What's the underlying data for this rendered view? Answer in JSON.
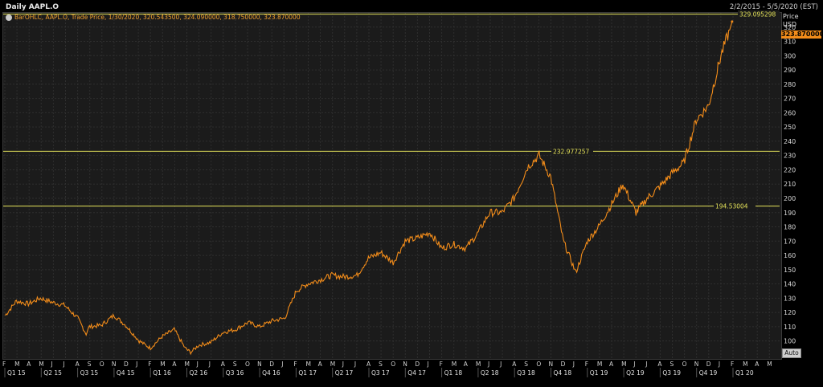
{
  "header": {
    "title": "Daily AAPL.O",
    "date_range": "2/2/2015 - 5/5/2020 (EST)"
  },
  "legend": {
    "text": "BarOHLC, AAPL.O, Trade Price, 1/30/2020, 320.543500, 324.090000, 318.750000, 323.870000"
  },
  "axis": {
    "label": "Price",
    "unit": "USD",
    "last_price": "323.870000",
    "auto_button": "Auto"
  },
  "colors": {
    "background": "#000000",
    "plot": "#1b1b1b",
    "grid": "#2f2f2f",
    "price_line": "#f28c1a",
    "levels": "#e5e35a"
  },
  "chart_data": {
    "type": "line",
    "title": "Daily AAPL.O",
    "ylabel": "Price USD",
    "ylim": [
      88,
      330
    ],
    "y_ticks": [
      100,
      110,
      120,
      130,
      140,
      150,
      160,
      170,
      180,
      190,
      200,
      210,
      220,
      230,
      240,
      250,
      260,
      270,
      280,
      290,
      300,
      310,
      320
    ],
    "grid": true,
    "month_labels": [
      "F",
      "M",
      "A",
      "M",
      "J",
      "J",
      "A",
      "S",
      "O",
      "N",
      "D",
      "J",
      "F",
      "M",
      "A",
      "M",
      "J",
      "J",
      "A",
      "S",
      "O",
      "N",
      "D",
      "J",
      "F",
      "M",
      "A",
      "M",
      "J",
      "J",
      "A",
      "S",
      "O",
      "N",
      "D",
      "J",
      "F",
      "M",
      "A",
      "M",
      "J",
      "J",
      "A",
      "S",
      "O",
      "N",
      "D",
      "J",
      "F",
      "M",
      "A",
      "M",
      "J",
      "J",
      "A",
      "S",
      "O",
      "N",
      "D",
      "J",
      "F",
      "M",
      "A",
      "M"
    ],
    "quarter_labels": [
      "Q1 15",
      "Q2 15",
      "Q3 15",
      "Q4 15",
      "Q1 16",
      "Q2 16",
      "Q3 16",
      "Q4 16",
      "Q1 17",
      "Q2 17",
      "Q3 17",
      "Q4 17",
      "Q1 18",
      "Q2 18",
      "Q3 18",
      "Q4 18",
      "Q1 19",
      "Q2 19",
      "Q3 19",
      "Q4 19",
      "Q1 20"
    ],
    "x_start": "2015-02",
    "horizontal_levels": [
      {
        "value": 329.095298,
        "label": "329.095298"
      },
      {
        "value": 232.977257,
        "label": "232.977257"
      },
      {
        "value": 194.53004,
        "label": "194.53004"
      }
    ],
    "series": [
      {
        "x": [
          "2015-02-02",
          "2015-03-02",
          "2015-04-01",
          "2015-05-01",
          "2015-06-01",
          "2015-07-01",
          "2015-08-03",
          "2015-08-24",
          "2015-09-01",
          "2015-10-01",
          "2015-11-02",
          "2015-12-01",
          "2016-01-04",
          "2016-02-01",
          "2016-03-01",
          "2016-04-01",
          "2016-04-28",
          "2016-05-12",
          "2016-06-01",
          "2016-07-01",
          "2016-08-01",
          "2016-09-01",
          "2016-10-03",
          "2016-11-01",
          "2016-12-01",
          "2017-01-03",
          "2017-02-01",
          "2017-03-01",
          "2017-04-03",
          "2017-05-01",
          "2017-06-01",
          "2017-07-03",
          "2017-08-01",
          "2017-09-01",
          "2017-10-02",
          "2017-11-01",
          "2017-12-01",
          "2018-01-02",
          "2018-02-01",
          "2018-03-01",
          "2018-04-02",
          "2018-05-01",
          "2018-06-01",
          "2018-07-02",
          "2018-08-01",
          "2018-09-04",
          "2018-10-03",
          "2018-11-01",
          "2018-12-03",
          "2019-01-03",
          "2019-02-01",
          "2019-03-01",
          "2019-04-01",
          "2019-05-01",
          "2019-06-03",
          "2019-07-01",
          "2019-08-01",
          "2019-09-03",
          "2019-10-01",
          "2019-11-01",
          "2019-12-02",
          "2020-01-02",
          "2020-01-24",
          "2020-01-30"
        ],
        "values": [
          118,
          128,
          126,
          130,
          127,
          125,
          116,
          105,
          110,
          111,
          118,
          111,
          100,
          95,
          103,
          108,
          95,
          92,
          97,
          99,
          106,
          108,
          113,
          110,
          114,
          116,
          135,
          140,
          143,
          146,
          145,
          146,
          158,
          162,
          155,
          170,
          172,
          176,
          165,
          168,
          165,
          175,
          190,
          190,
          200,
          222,
          230,
          215,
          170,
          148,
          170,
          180,
          195,
          210,
          190,
          200,
          208,
          218,
          225,
          255,
          265,
          300,
          318,
          323.87
        ]
      }
    ]
  }
}
